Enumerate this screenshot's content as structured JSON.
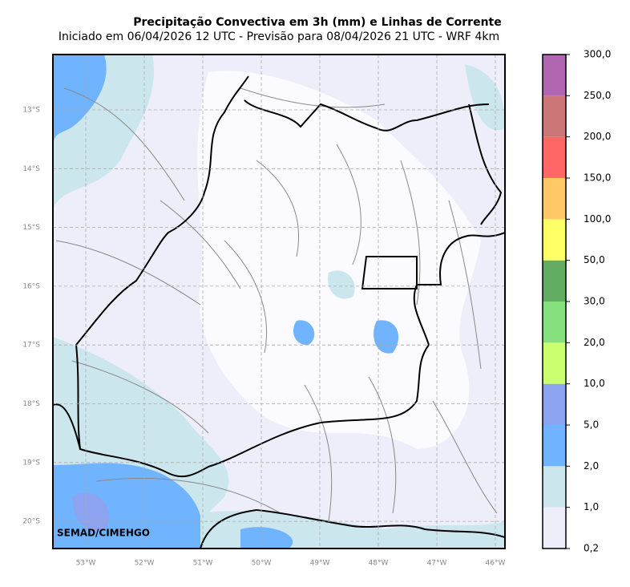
{
  "header": {
    "title": "Precipitação Convectiva em 3h (mm) e Linhas de Corrente",
    "subtitle": "Iniciado em 06/04/2026 12 UTC - Previsão para 08/04/2026 21 UTC - WRF 4km"
  },
  "map": {
    "lat_ticks": [
      {
        "value": -13,
        "label": "13°S"
      },
      {
        "value": -14,
        "label": "14°S"
      },
      {
        "value": -15,
        "label": "15°S"
      },
      {
        "value": -16,
        "label": "16°S"
      },
      {
        "value": -17,
        "label": "17°S"
      },
      {
        "value": -18,
        "label": "18°S"
      },
      {
        "value": -19,
        "label": "19°S"
      },
      {
        "value": -20,
        "label": "20°S"
      }
    ],
    "lon_ticks": [
      {
        "value": -53,
        "label": "53°W"
      },
      {
        "value": -52,
        "label": "52°W"
      },
      {
        "value": -51,
        "label": "51°W"
      },
      {
        "value": -50,
        "label": "50°W"
      },
      {
        "value": -49,
        "label": "49°W"
      },
      {
        "value": -48,
        "label": "48°W"
      },
      {
        "value": -47,
        "label": "47°W"
      },
      {
        "value": -46,
        "label": "46°W"
      }
    ],
    "credit": "SEMAD/CIMEHGO"
  },
  "colorbar": {
    "levels": [
      {
        "value": 0.2,
        "label": "0,2"
      },
      {
        "value": 1,
        "label": "1,0"
      },
      {
        "value": 2,
        "label": "2,0"
      },
      {
        "value": 5,
        "label": "5,0"
      },
      {
        "value": 10,
        "label": "10,0"
      },
      {
        "value": 20,
        "label": "20,0"
      },
      {
        "value": 30,
        "label": "30,0"
      },
      {
        "value": 50,
        "label": "50,0"
      },
      {
        "value": 100,
        "label": "100,0"
      },
      {
        "value": 150,
        "label": "150,0"
      },
      {
        "value": 200,
        "label": "200,0"
      },
      {
        "value": 250,
        "label": "250,0"
      },
      {
        "value": 300,
        "label": "300,0"
      }
    ],
    "colors": [
      "#eeeefa",
      "#cce6ee",
      "#70b4ff",
      "#8ca3ef",
      "#ccff70",
      "#87e07e",
      "#63ad63",
      "#ffff66",
      "#ffc866",
      "#ff6666",
      "#cc7777",
      "#b066b0"
    ]
  }
}
